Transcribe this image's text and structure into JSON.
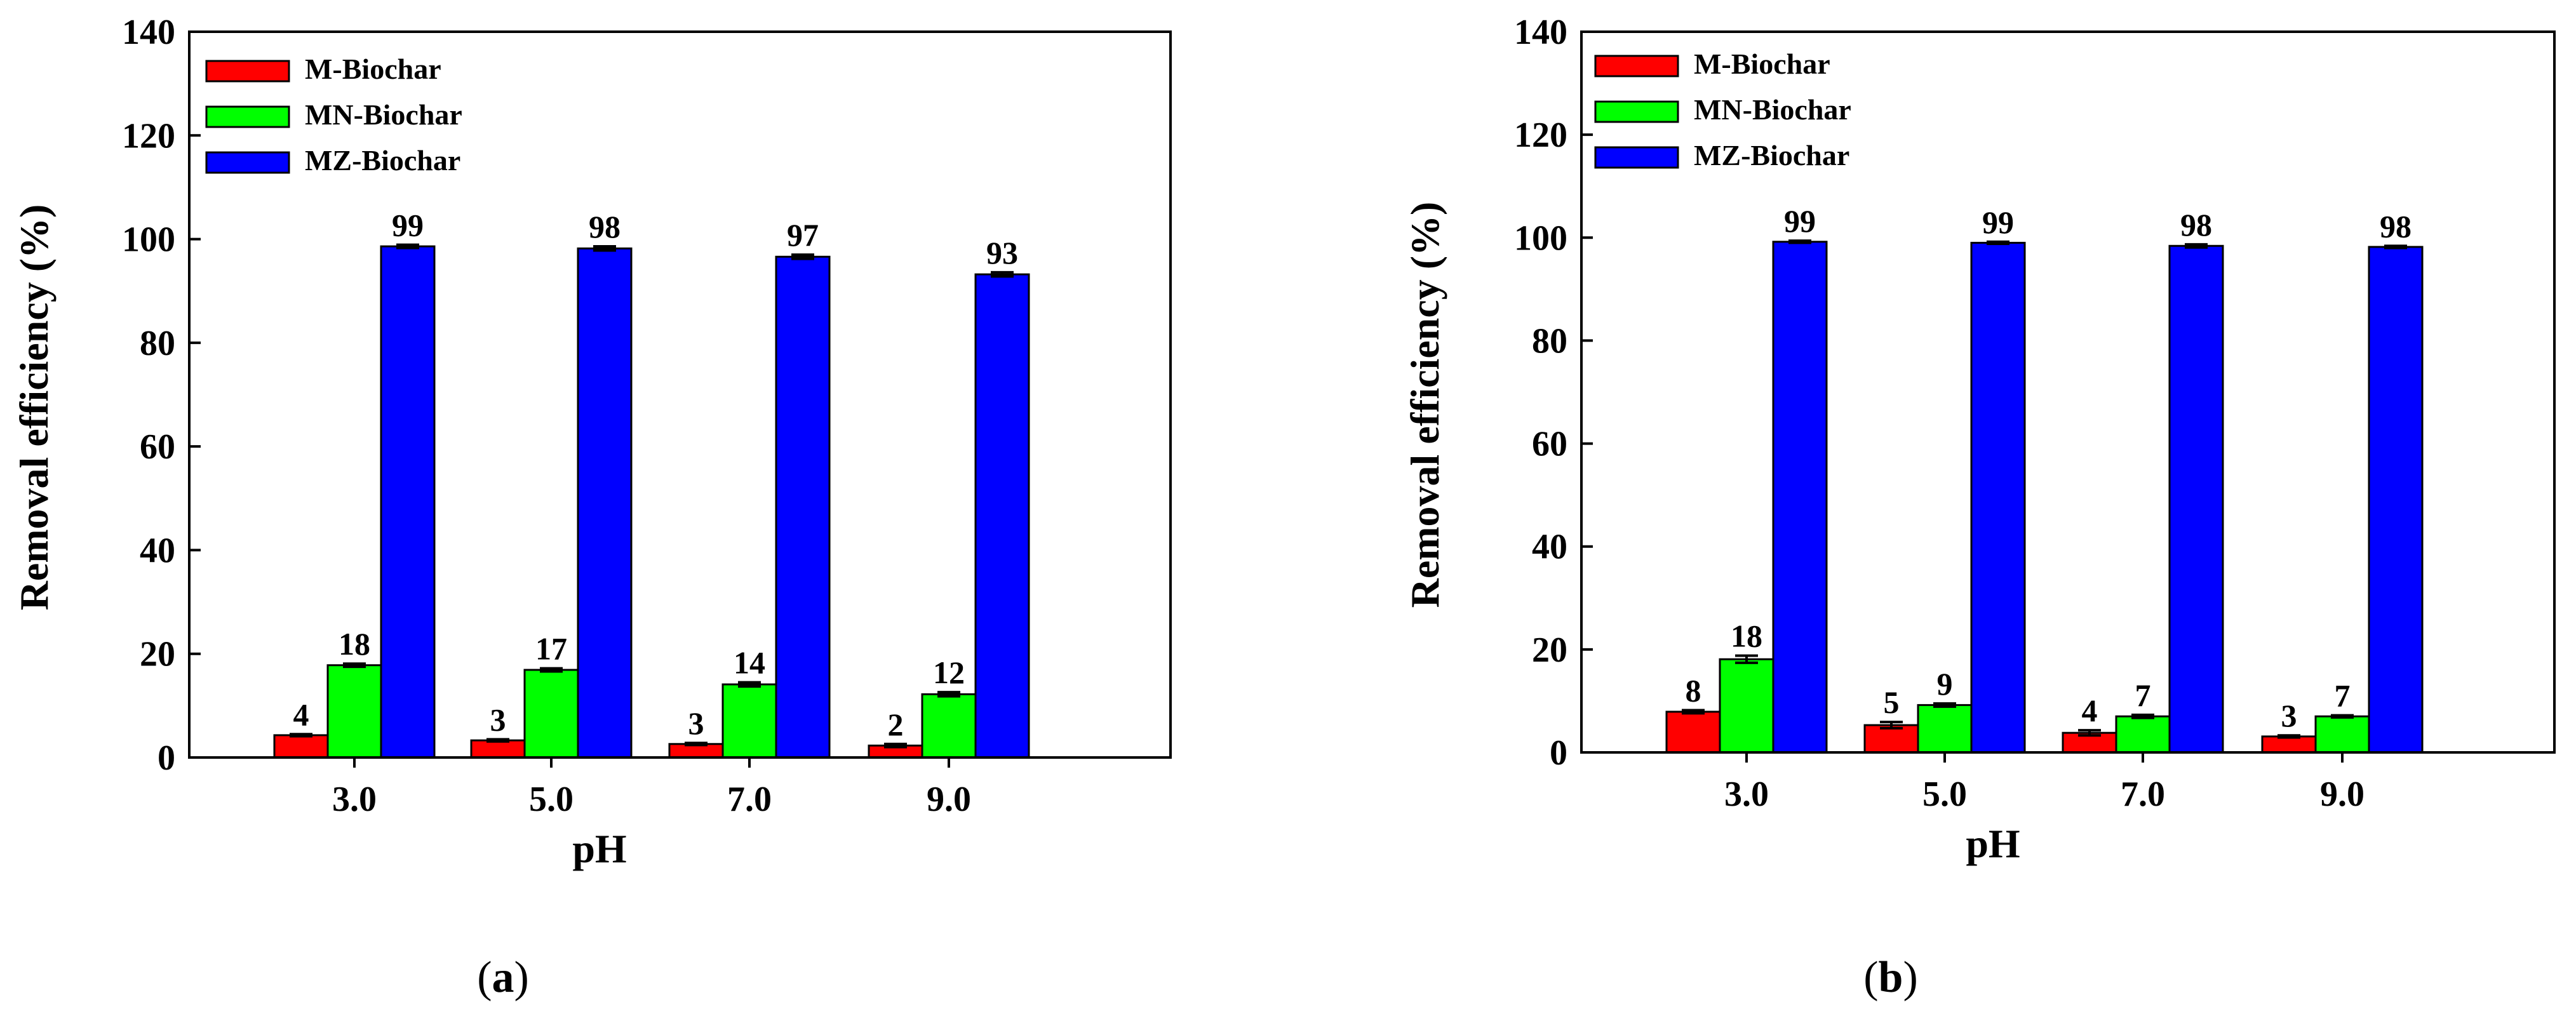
{
  "figure": {
    "panels": [
      "a",
      "b"
    ]
  },
  "chart_data": [
    {
      "type": "bar",
      "caption": "(a)",
      "caption_parts": {
        "open": "(",
        "letter": "a",
        "close": ")"
      },
      "title": "",
      "xlabel": "pH",
      "ylabel": "Removal efficiency (%)",
      "ylim": [
        0,
        140
      ],
      "yticks": [
        0,
        20,
        40,
        60,
        80,
        100,
        120,
        140
      ],
      "ytick_labels": [
        "0",
        "20",
        "40",
        "60",
        "80",
        "100",
        "120",
        "140"
      ],
      "categories": [
        "3.0",
        "5.0",
        "7.0",
        "9.0"
      ],
      "legend_position": "top-left",
      "series": [
        {
          "name": "M-Biochar",
          "color": "#ff0000",
          "values": [
            4.3,
            3.3,
            2.6,
            2.3
          ],
          "errors": [
            0.2,
            0.2,
            0.2,
            0.3
          ],
          "labels": [
            "4",
            "3",
            "3",
            "2"
          ]
        },
        {
          "name": "MN-Biochar",
          "color": "#00ff00",
          "values": [
            17.8,
            16.9,
            14.1,
            12.2
          ],
          "errors": [
            0.3,
            0.3,
            0.4,
            0.4
          ],
          "labels": [
            "18",
            "17",
            "14",
            "12"
          ]
        },
        {
          "name": "MZ-Biochar",
          "color": "#0000ff",
          "values": [
            98.6,
            98.2,
            96.6,
            93.2
          ],
          "errors": [
            0.3,
            0.4,
            0.4,
            0.4
          ],
          "labels": [
            "99",
            "98",
            "97",
            "93"
          ]
        }
      ]
    },
    {
      "type": "bar",
      "caption": "(b)",
      "caption_parts": {
        "open": "(",
        "letter": "b",
        "close": ")"
      },
      "title": "",
      "xlabel": "pH",
      "ylabel": "Removal efficiency (%)",
      "ylim": [
        0,
        140
      ],
      "yticks": [
        0,
        20,
        40,
        60,
        80,
        100,
        120,
        140
      ],
      "ytick_labels": [
        "0",
        "20",
        "40",
        "60",
        "80",
        "100",
        "120",
        "140"
      ],
      "categories": [
        "3.0",
        "5.0",
        "7.0",
        "9.0"
      ],
      "legend_position": "top-left",
      "series": [
        {
          "name": "M-Biochar",
          "color": "#ff0000",
          "values": [
            7.9,
            5.3,
            3.8,
            3.1
          ],
          "errors": [
            0.3,
            0.6,
            0.5,
            0.2
          ],
          "labels": [
            "8",
            "5",
            "4",
            "3"
          ]
        },
        {
          "name": "MN-Biochar",
          "color": "#00ff00",
          "values": [
            18.1,
            9.2,
            7.0,
            7.0
          ],
          "errors": [
            0.7,
            0.3,
            0.3,
            0.2
          ],
          "labels": [
            "18",
            "9",
            "7",
            "7"
          ]
        },
        {
          "name": "MZ-Biochar",
          "color": "#0000ff",
          "values": [
            99.2,
            99.0,
            98.4,
            98.2
          ],
          "errors": [
            0.2,
            0.2,
            0.3,
            0.2
          ],
          "labels": [
            "99",
            "99",
            "98",
            "98"
          ]
        }
      ]
    }
  ]
}
